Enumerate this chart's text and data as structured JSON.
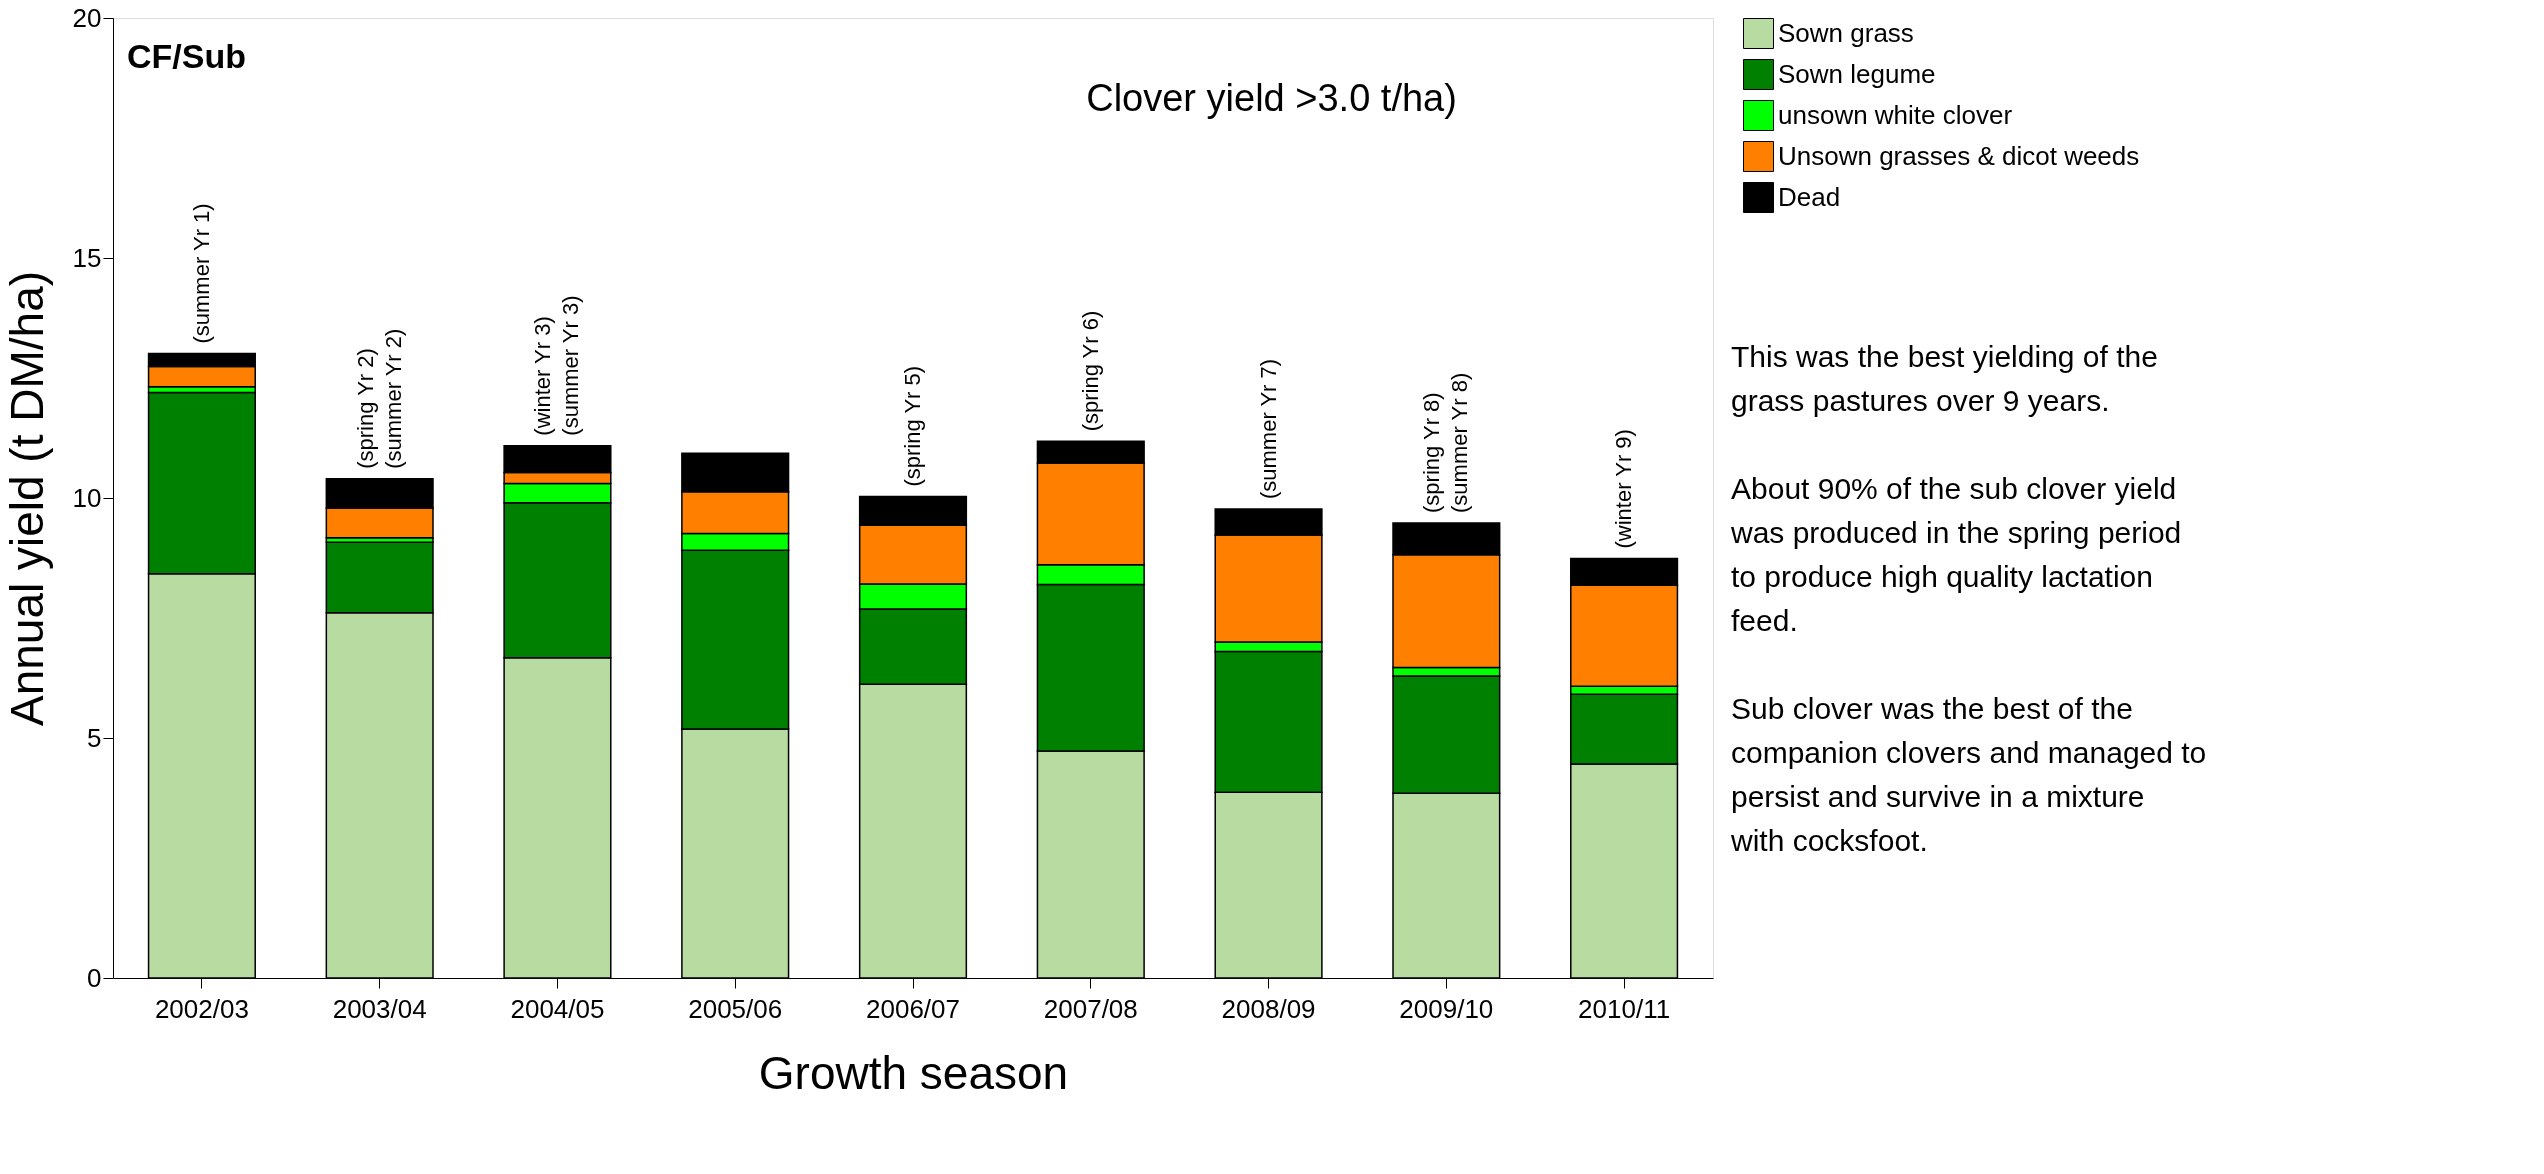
{
  "chart_data": {
    "type": "bar",
    "stacked": true,
    "xlabel": "Growth season",
    "ylabel": "Annual yield (t DM/ha)",
    "categories": [
      "2002/03",
      "2003/04",
      "2004/05",
      "2005/06",
      "2006/07",
      "2007/08",
      "2008/09",
      "2009/10",
      "2010/11"
    ],
    "series": [
      {
        "name": "Sown grass",
        "color": "#b7dba0",
        "values": [
          8.42,
          7.61,
          6.67,
          5.19,
          6.12,
          4.73,
          3.87,
          3.85,
          4.46
        ]
      },
      {
        "name": "Sown legume",
        "color": "#008000",
        "values": [
          3.78,
          1.47,
          3.23,
          3.72,
          1.57,
          3.47,
          2.93,
          2.44,
          1.45
        ]
      },
      {
        "name": "unsown white clover",
        "color": "#00ff00",
        "values": [
          0.12,
          0.09,
          0.4,
          0.35,
          0.52,
          0.41,
          0.2,
          0.18,
          0.17
        ]
      },
      {
        "name": "Unsown grasses & dicot weeds",
        "color": "#ff8000",
        "values": [
          0.42,
          0.62,
          0.23,
          0.87,
          1.22,
          2.12,
          2.23,
          2.35,
          2.1
        ]
      },
      {
        "name": "Dead",
        "color": "#000000",
        "values": [
          0.27,
          0.61,
          0.56,
          0.8,
          0.6,
          0.45,
          0.54,
          0.66,
          0.56
        ]
      }
    ],
    "ylim": [
      0,
      20
    ],
    "yticks": [
      0,
      5,
      10,
      15,
      20
    ],
    "grid": false,
    "legend": "top right",
    "annotations": [
      "CF/Sub",
      "Clover yield >3.0 t/ha)",
      {
        "text": "(summer Yr 1)",
        "x": "2002/03",
        "y": 13.01
      },
      {
        "text": "(spring Yr 2)",
        "x": "2003/04",
        "y": 10.4
      },
      {
        "text": "(summer Yr 2)",
        "x": "2003/04",
        "y": 10.4
      },
      {
        "text": "(winter Yr 3)",
        "x": "2004/05",
        "y": 11.09
      },
      {
        "text": "(summer Yr 3)",
        "x": "2004/05",
        "y": 11.09
      },
      {
        "text": "(spring Yr 5)",
        "x": "2006/07",
        "y": 10.03
      },
      {
        "text": "(spring Yr 6)",
        "x": "2007/08",
        "y": 11.18
      },
      {
        "text": "(summer Yr 7)",
        "x": "2008/09",
        "y": 9.77
      },
      {
        "text": "(spring Yr 8)",
        "x": "2009/10",
        "y": 9.48
      },
      {
        "text": "(summer Yr 8)",
        "x": "2009/10",
        "y": 9.48
      },
      {
        "text": "(winter Yr 9)",
        "x": "2010/11",
        "y": 8.74
      },
      "This was the best yielding of the grass pastures over 9 years.",
      "About 90% of the sub clover yield was produced in the spring  period to produce high quality lactation feed.",
      "Sub clover was the best of the companion clovers and managed to persist and survive in a mixture with cocksfoot."
    ]
  }
}
